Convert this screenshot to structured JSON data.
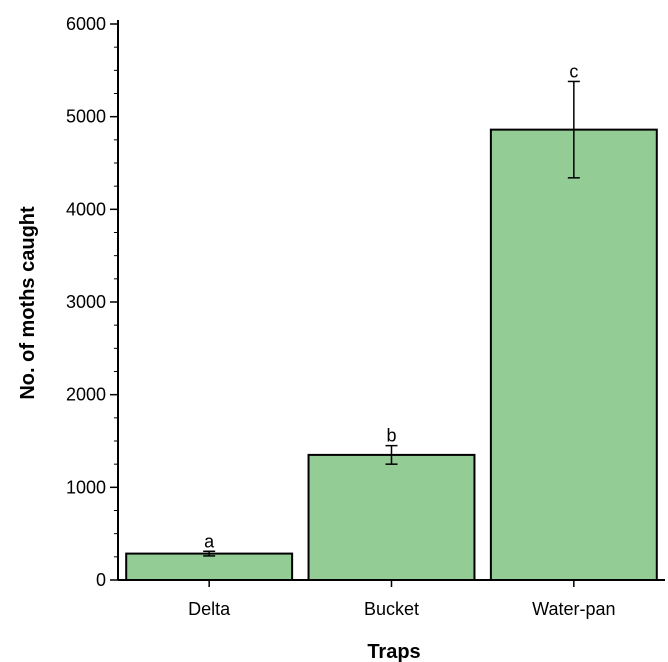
{
  "chart_data": {
    "type": "bar",
    "categories": [
      "Delta",
      "Bucket",
      "Water-pan"
    ],
    "values": [
      285,
      1350,
      4860
    ],
    "errors": [
      25,
      100,
      520
    ],
    "significance_letters": [
      "a",
      "b",
      "c"
    ],
    "xlabel": "Traps",
    "ylabel": "No. of moths caught",
    "ylim": [
      0,
      6000
    ],
    "yticks": [
      0,
      1000,
      2000,
      3000,
      4000,
      5000,
      6000
    ],
    "bar_color": "#93cc95",
    "bar_edge_color": "#000000",
    "grid": false,
    "legend": "none"
  }
}
